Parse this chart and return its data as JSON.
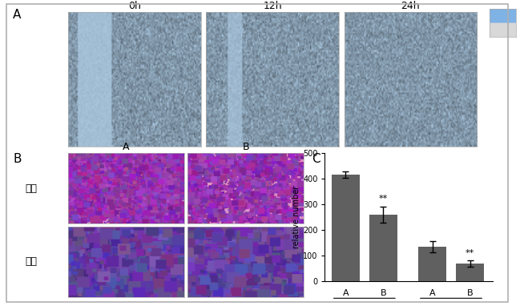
{
  "panel_A_label": "A",
  "panel_B_label": "B",
  "panel_C_label": "C",
  "time_labels": [
    "0h",
    "12h",
    "24h"
  ],
  "row_labels": [
    "迁移",
    "侵袋"
  ],
  "col_labels_B": [
    "A",
    "B"
  ],
  "bar_values": [
    415,
    260,
    135,
    70
  ],
  "bar_errors": [
    13,
    30,
    22,
    12
  ],
  "bar_color": "#606060",
  "ylabel": "relative number",
  "ylim": [
    0,
    500
  ],
  "yticks": [
    0,
    100,
    200,
    300,
    400,
    500
  ],
  "bg_color": "#ffffff",
  "outer_border_color": "#b0b0b0"
}
